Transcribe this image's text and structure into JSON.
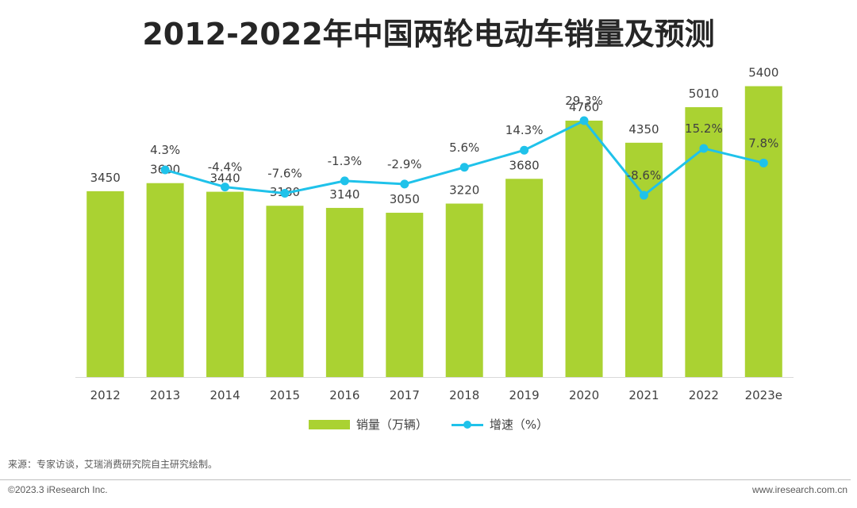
{
  "title": "2012-2022年中国两轮电动车销量及预测",
  "legend": {
    "bar_label": "销量（万辆）",
    "line_label": "增速（%）"
  },
  "source": "来源：专家访谈，艾瑞消费研究院自主研究绘制。",
  "footer": {
    "copyright": "©2023.3 iResearch Inc.",
    "website": "www.iresearch.com.cn"
  },
  "colors": {
    "bar": "#aad232",
    "line": "#1fc2ea",
    "axis": "#d9d9d9"
  },
  "chart_data": {
    "type": "bar",
    "categories": [
      "2012",
      "2013",
      "2014",
      "2015",
      "2016",
      "2017",
      "2018",
      "2019",
      "2020",
      "2021",
      "2022",
      "2023e"
    ],
    "series": [
      {
        "name": "销量（万辆）",
        "type": "bar",
        "values": [
          3450,
          3600,
          3440,
          3180,
          3140,
          3050,
          3220,
          3680,
          4760,
          4350,
          5010,
          5400
        ],
        "labels": [
          "3450",
          "3600",
          "3440",
          "3180",
          "3140",
          "3050",
          "3220",
          "3680",
          "4760",
          "4350",
          "5010",
          "5400"
        ]
      },
      {
        "name": "增速（%）",
        "type": "line",
        "values": [
          null,
          4.3,
          -4.4,
          -7.6,
          -1.3,
          -2.9,
          5.6,
          14.3,
          29.3,
          -8.6,
          15.2,
          7.8
        ],
        "labels": [
          "",
          "4.3%",
          "-4.4%",
          "-7.6%",
          "-1.3%",
          "-2.9%",
          "5.6%",
          "14.3%",
          "29.3%",
          "-8.6%",
          "15.2%",
          "7.8%"
        ]
      }
    ],
    "title": "2012-2022年中国两轮电动车销量及预测",
    "xlabel": "",
    "ylabel": "",
    "ylim": [
      0,
      7000
    ],
    "y2lim": [
      -42,
      36
    ],
    "grid": false,
    "legend_position": "bottom"
  }
}
